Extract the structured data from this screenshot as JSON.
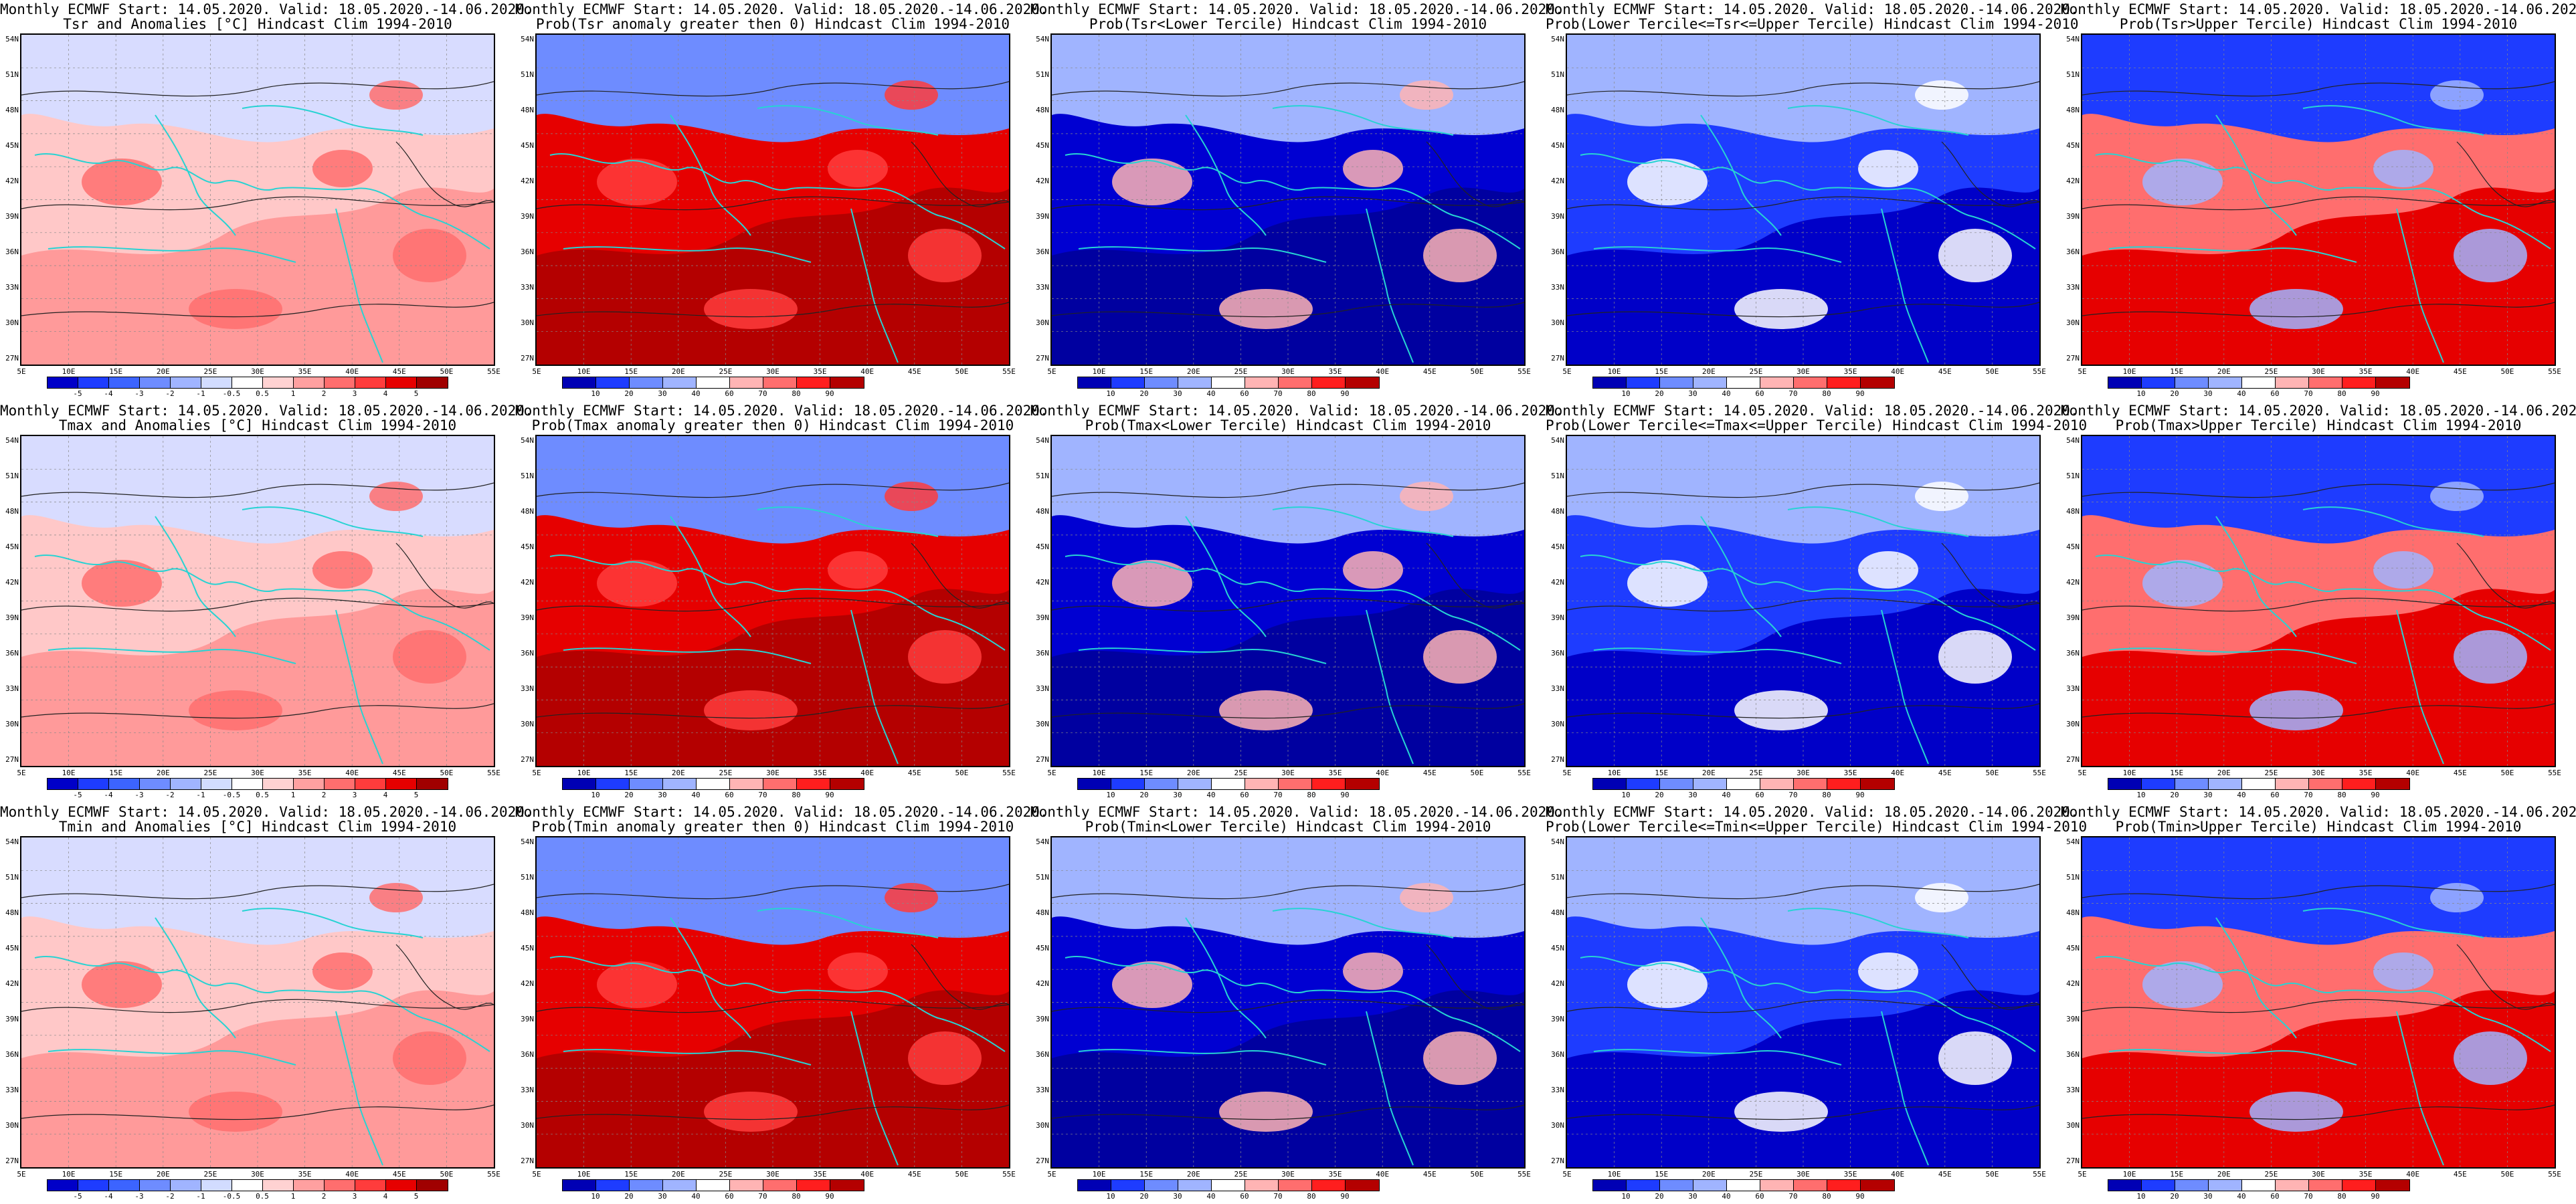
{
  "panels": [
    {
      "id": "tsr-anom",
      "row": 0,
      "col": 0,
      "title1": "Monthly ECMWF Start: 14.05.2020. Valid: 18.05.2020.-14.06.2020.",
      "title2": "Tsr and Anomalies [°C] Hindcast Clim 1994-2010",
      "scheme": "anom",
      "field": "warm"
    },
    {
      "id": "tsr-prob-pos",
      "row": 0,
      "col": 1,
      "title1": "Monthly ECMWF Start: 14.05.2020. Valid: 18.05.2020.-14.06.2020.",
      "title2": "Prob(Tsr anomaly greater then 0) Hindcast Clim 1994-2010",
      "scheme": "prob",
      "field": "hot"
    },
    {
      "id": "tsr-prob-lower",
      "row": 0,
      "col": 2,
      "title1": "Monthly ECMWF Start: 14.05.2020. Valid: 18.05.2020.-14.06.2020.",
      "title2": "Prob(Tsr<Lower Tercile) Hindcast Clim 1994-2010",
      "scheme": "prob",
      "field": "cold"
    },
    {
      "id": "tsr-prob-middle",
      "row": 0,
      "col": 3,
      "title1": "Monthly ECMWF Start: 14.05.2020. Valid: 18.05.2020.-14.06.2020.",
      "title2": "Prob(Lower Tercile<=Tsr<=Upper Tercile) Hindcast Clim 1994-2010",
      "scheme": "prob",
      "field": "middle"
    },
    {
      "id": "tsr-prob-upper",
      "row": 0,
      "col": 4,
      "title1": "Monthly ECMWF Start: 14.05.2020. Valid: 18.05.2020.-14.06.2020.",
      "title2": "Prob(Tsr>Upper Tercile) Hindcast Clim 1994-2010",
      "scheme": "prob",
      "field": "upper"
    },
    {
      "id": "tmax-anom",
      "row": 1,
      "col": 0,
      "title1": "Monthly ECMWF Start: 14.05.2020. Valid: 18.05.2020.-14.06.2020.",
      "title2": "Tmax and Anomalies [°C] Hindcast Clim 1994-2010",
      "scheme": "anom",
      "field": "warm"
    },
    {
      "id": "tmax-prob-pos",
      "row": 1,
      "col": 1,
      "title1": "Monthly ECMWF Start: 14.05.2020. Valid: 18.05.2020.-14.06.2020.",
      "title2": "Prob(Tmax anomaly greater then 0) Hindcast Clim 1994-2010",
      "scheme": "prob",
      "field": "hot"
    },
    {
      "id": "tmax-prob-lower",
      "row": 1,
      "col": 2,
      "title1": "Monthly ECMWF Start: 14.05.2020. Valid: 18.05.2020.-14.06.2020.",
      "title2": "Prob(Tmax<Lower Tercile) Hindcast Clim 1994-2010",
      "scheme": "prob",
      "field": "cold"
    },
    {
      "id": "tmax-prob-middle",
      "row": 1,
      "col": 3,
      "title1": "Monthly ECMWF Start: 14.05.2020. Valid: 18.05.2020.-14.06.2020.",
      "title2": "Prob(Lower Tercile<=Tmax<=Upper Tercile) Hindcast Clim 1994-2010",
      "scheme": "prob",
      "field": "middle"
    },
    {
      "id": "tmax-prob-upper",
      "row": 1,
      "col": 4,
      "title1": "Monthly ECMWF Start: 14.05.2020. Valid: 18.05.2020.-14.06.2020.",
      "title2": "Prob(Tmax>Upper Tercile) Hindcast Clim 1994-2010",
      "scheme": "prob",
      "field": "upper"
    },
    {
      "id": "tmin-anom",
      "row": 2,
      "col": 0,
      "title1": "Monthly ECMWF Start: 14.05.2020. Valid: 18.05.2020.-14.06.2020.",
      "title2": "Tmin and Anomalies [°C] Hindcast Clim 1994-2010",
      "scheme": "anom",
      "field": "warm"
    },
    {
      "id": "tmin-prob-pos",
      "row": 2,
      "col": 1,
      "title1": "Monthly ECMWF Start: 14.05.2020. Valid: 18.05.2020.-14.06.2020.",
      "title2": "Prob(Tmin anomaly greater then 0) Hindcast Clim 1994-2010",
      "scheme": "prob",
      "field": "hot"
    },
    {
      "id": "tmin-prob-lower",
      "row": 2,
      "col": 2,
      "title1": "Monthly ECMWF Start: 14.05.2020. Valid: 18.05.2020.-14.06.2020.",
      "title2": "Prob(Tmin<Lower Tercile) Hindcast Clim 1994-2010",
      "scheme": "prob",
      "field": "cold"
    },
    {
      "id": "tmin-prob-middle",
      "row": 2,
      "col": 3,
      "title1": "Monthly ECMWF Start: 14.05.2020. Valid: 18.05.2020.-14.06.2020.",
      "title2": "Prob(Lower Tercile<=Tmin<=Upper Tercile) Hindcast Clim 1994-2010",
      "scheme": "prob",
      "field": "middle"
    },
    {
      "id": "tmin-prob-upper",
      "row": 2,
      "col": 4,
      "title1": "Monthly ECMWF Start: 14.05.2020. Valid: 18.05.2020.-14.06.2020.",
      "title2": "Prob(Tmin>Upper Tercile) Hindcast Clim 1994-2010",
      "scheme": "prob",
      "field": "upper"
    }
  ],
  "lat_labels": [
    "54N",
    "51N",
    "48N",
    "45N",
    "42N",
    "39N",
    "36N",
    "33N",
    "30N",
    "27N"
  ],
  "lon_labels": [
    "5E",
    "10E",
    "15E",
    "20E",
    "25E",
    "30E",
    "35E",
    "40E",
    "45E",
    "50E",
    "55E"
  ],
  "colorbars": {
    "anom": {
      "labels": [
        "-5",
        "-4",
        "-3",
        "-2",
        "-1",
        "-0.5",
        "0.5",
        "1",
        "2",
        "3",
        "4",
        "5"
      ],
      "colors": [
        "#0000c8",
        "#1e3cff",
        "#3c64ff",
        "#6e8cff",
        "#a0b4ff",
        "#d2dcff",
        "#ffffff",
        "#ffd2d2",
        "#ffa0a0",
        "#ff6e6e",
        "#ff3c3c",
        "#e60000",
        "#a00000"
      ]
    },
    "prob": {
      "labels": [
        "10",
        "20",
        "30",
        "40",
        "60",
        "70",
        "80",
        "90"
      ],
      "colors": [
        "#0000b4",
        "#1e3cff",
        "#6e8cff",
        "#a0b4ff",
        "#ffffff",
        "#ffb4b4",
        "#ff6e6e",
        "#ff1e1e",
        "#b40000"
      ]
    }
  },
  "field_colors": {
    "warm": {
      "base": "#ffc8c8",
      "north": "#d8dcff",
      "band": "#ff9a9a",
      "spot": "#ff6e6e"
    },
    "hot": {
      "base": "#e60000",
      "north": "#6e8cff",
      "band": "#b40000",
      "spot": "#ff3c3c"
    },
    "cold": {
      "base": "#0000d2",
      "north": "#a0b4ff",
      "band": "#0000a0",
      "spot": "#ffb4b4"
    },
    "middle": {
      "base": "#1e3cff",
      "north": "#a0b4ff",
      "band": "#0000c8",
      "spot": "#ffffff"
    },
    "upper": {
      "base": "#ff6e6e",
      "north": "#1e3cff",
      "band": "#e60000",
      "spot": "#a0b4ff"
    }
  }
}
